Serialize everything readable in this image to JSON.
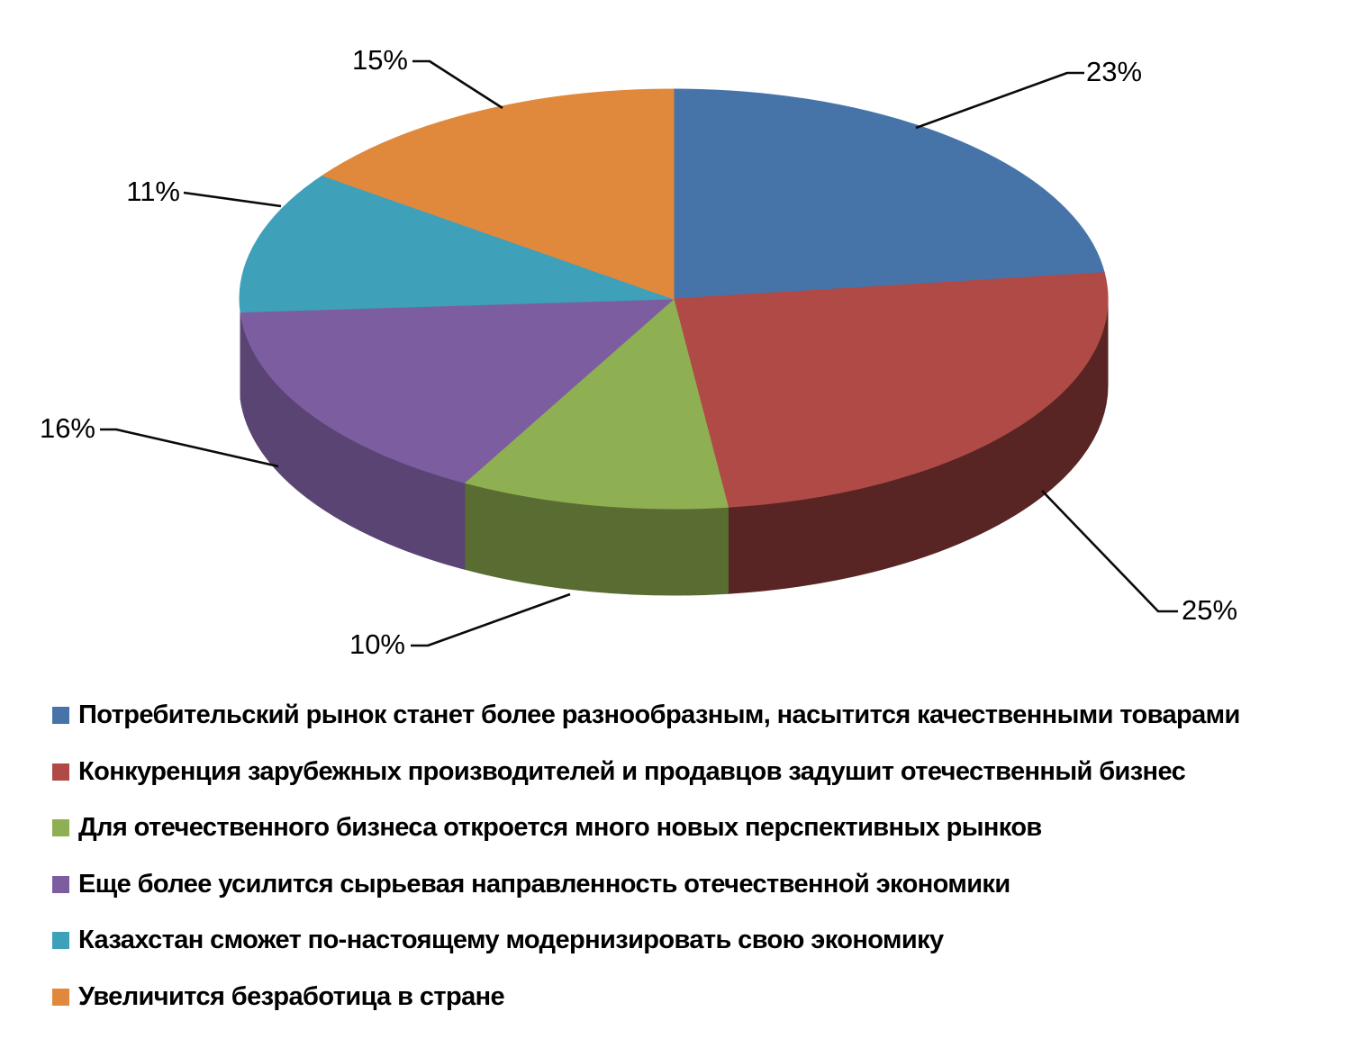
{
  "page": {
    "background": "#ffffff",
    "title": ""
  },
  "chart_data": {
    "type": "pie",
    "style": "3d",
    "title": "",
    "legend_position": "bottom-left",
    "data_labels": "percent, outside with black leader lines",
    "start_angle_deg": 0,
    "direction": "clockwise",
    "total": 100,
    "slices": [
      {
        "legend": "Потребительский рынок станет более разнообразным, насытится качественными товарами",
        "value": 23,
        "label": "23%",
        "color": "#4674A9"
      },
      {
        "legend": "Конкуренция зарубежных производителей и продавцов задушит отечественный бизнес",
        "value": 25,
        "label": "25%",
        "color": "#B04A47"
      },
      {
        "legend": "Для отечественного бизнеса откроется много новых перспективных рынков",
        "value": 10,
        "label": "10%",
        "color": "#8FAF53"
      },
      {
        "legend": "Еще более усилится сырьевая направленность отечественной экономики",
        "value": 16,
        "label": "16%",
        "color": "#7C5EA0"
      },
      {
        "legend": "Казахстан сможет по-настоящему модернизировать свою экономику",
        "value": 11,
        "label": "11%",
        "color": "#3FA0BA"
      },
      {
        "legend": "Увеличится безработица в стране",
        "value": 15,
        "label": "15%",
        "color": "#E0893D"
      }
    ]
  }
}
